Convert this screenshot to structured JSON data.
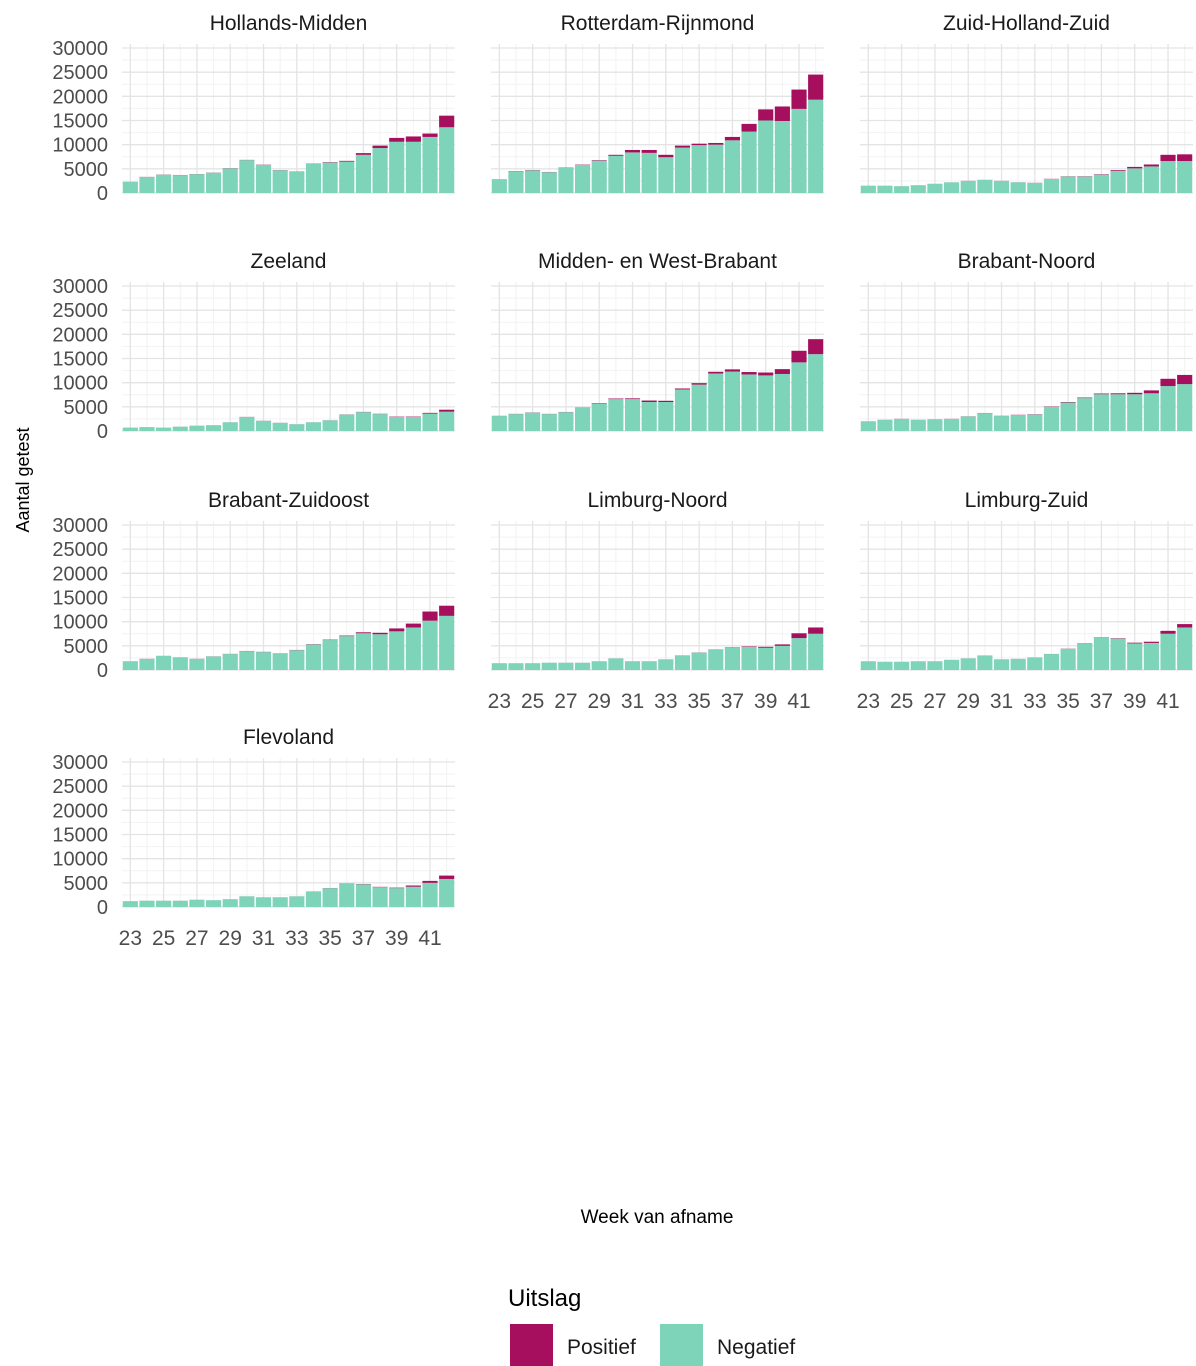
{
  "chart_data": {
    "type": "bar",
    "stacked": true,
    "xlabel": "Week van afname",
    "ylabel": "Aantal getest",
    "ylim": [
      0,
      30000
    ],
    "y_ticks": [
      0,
      5000,
      10000,
      15000,
      20000,
      25000,
      30000
    ],
    "x_weeks": [
      23,
      24,
      25,
      26,
      27,
      28,
      29,
      30,
      31,
      32,
      33,
      34,
      35,
      36,
      37,
      38,
      39,
      40,
      41,
      42
    ],
    "x_tick_labels": [
      "23",
      "25",
      "27",
      "29",
      "31",
      "33",
      "35",
      "37",
      "39",
      "41"
    ],
    "grid": true,
    "legend": {
      "title": "Uitslag",
      "position": "bottom",
      "items": [
        {
          "label": "Positief",
          "color": "#A50F5E"
        },
        {
          "label": "Negatief",
          "color": "#7DD4B8"
        }
      ]
    },
    "colors": {
      "positief": "#A50F5E",
      "negatief": "#7DD4B8"
    },
    "panels": [
      {
        "title": "Hollands-Midden",
        "negatief": [
          2300,
          3300,
          3800,
          3700,
          3900,
          4200,
          5100,
          6800,
          5800,
          4700,
          4400,
          6000,
          6300,
          6500,
          7900,
          9300,
          10600,
          10600,
          11600,
          13600
        ],
        "positief": [
          20,
          30,
          30,
          30,
          30,
          30,
          40,
          50,
          50,
          40,
          50,
          60,
          80,
          150,
          350,
          500,
          800,
          1100,
          700,
          2400
        ]
      },
      {
        "title": "Rotterdam-Rijnmond",
        "negatief": [
          2800,
          4500,
          4700,
          4300,
          5200,
          5800,
          6700,
          7700,
          8400,
          8300,
          7400,
          9400,
          9900,
          10000,
          10900,
          12700,
          15000,
          14900,
          17400,
          19300
        ],
        "positief": [
          30,
          50,
          60,
          50,
          60,
          70,
          100,
          200,
          500,
          600,
          500,
          400,
          300,
          350,
          700,
          1600,
          2300,
          3000,
          4000,
          5200
        ]
      },
      {
        "title": "Zuid-Holland-Zuid",
        "negatief": [
          1500,
          1500,
          1400,
          1600,
          1900,
          2200,
          2500,
          2700,
          2500,
          2200,
          2100,
          2900,
          3400,
          3400,
          3800,
          4600,
          5100,
          5500,
          6600,
          6600
        ],
        "positief": [
          10,
          10,
          10,
          10,
          10,
          10,
          20,
          20,
          20,
          20,
          20,
          30,
          50,
          60,
          80,
          150,
          300,
          400,
          1300,
          1400
        ]
      },
      {
        "title": "Zeeland",
        "negatief": [
          700,
          800,
          700,
          900,
          1100,
          1200,
          1800,
          2900,
          2100,
          1700,
          1400,
          1800,
          2200,
          3400,
          3900,
          3500,
          2900,
          2900,
          3600,
          4000
        ],
        "positief": [
          5,
          5,
          5,
          5,
          5,
          5,
          10,
          20,
          20,
          10,
          10,
          10,
          20,
          30,
          50,
          60,
          70,
          80,
          150,
          400
        ]
      },
      {
        "title": "Midden- en West-Brabant",
        "negatief": [
          3100,
          3500,
          3800,
          3500,
          3900,
          4800,
          5700,
          6600,
          6600,
          6000,
          6000,
          8600,
          9600,
          11900,
          12300,
          11700,
          11500,
          11800,
          14200,
          15900
        ],
        "positief": [
          30,
          40,
          40,
          40,
          40,
          50,
          80,
          120,
          150,
          300,
          250,
          200,
          300,
          350,
          450,
          500,
          600,
          1000,
          2400,
          3100
        ]
      },
      {
        "title": "Brabant-Noord",
        "negatief": [
          2000,
          2300,
          2500,
          2300,
          2400,
          2500,
          3000,
          3700,
          3100,
          3300,
          3400,
          5000,
          5900,
          6800,
          7600,
          7600,
          7600,
          7800,
          9300,
          9700
        ],
        "positief": [
          10,
          20,
          20,
          20,
          20,
          20,
          30,
          30,
          40,
          50,
          60,
          70,
          100,
          120,
          150,
          200,
          300,
          600,
          1500,
          1900
        ]
      },
      {
        "title": "Brabant-Zuidoost",
        "negatief": [
          1800,
          2300,
          2900,
          2600,
          2300,
          2800,
          3300,
          3900,
          3700,
          3400,
          4100,
          5300,
          6200,
          7000,
          7600,
          7400,
          8000,
          8800,
          10200,
          11200
        ],
        "positief": [
          10,
          20,
          20,
          20,
          20,
          20,
          30,
          40,
          50,
          40,
          50,
          60,
          80,
          120,
          200,
          300,
          600,
          800,
          1900,
          2100
        ]
      },
      {
        "title": "Limburg-Noord",
        "negatief": [
          1400,
          1400,
          1400,
          1500,
          1500,
          1500,
          1800,
          2400,
          1800,
          1800,
          2200,
          3000,
          3600,
          4200,
          4600,
          4800,
          4600,
          5000,
          6600,
          7500
        ],
        "positief": [
          5,
          5,
          5,
          5,
          5,
          5,
          10,
          10,
          10,
          10,
          10,
          20,
          30,
          50,
          80,
          100,
          200,
          300,
          1000,
          1300
        ]
      },
      {
        "title": "Limburg-Zuid",
        "negatief": [
          1800,
          1700,
          1700,
          1800,
          1800,
          2100,
          2400,
          3000,
          2200,
          2300,
          2600,
          3300,
          4400,
          5500,
          6700,
          6500,
          5500,
          5600,
          7500,
          8800
        ],
        "positief": [
          5,
          5,
          5,
          5,
          5,
          5,
          10,
          10,
          10,
          10,
          10,
          20,
          30,
          40,
          60,
          80,
          150,
          250,
          600,
          700
        ]
      },
      {
        "title": "Flevoland",
        "negatief": [
          1200,
          1300,
          1300,
          1300,
          1500,
          1400,
          1600,
          2200,
          2000,
          2000,
          2200,
          3200,
          3900,
          4800,
          4700,
          4100,
          3900,
          4200,
          5000,
          5800
        ],
        "positief": [
          5,
          5,
          5,
          5,
          5,
          5,
          10,
          10,
          10,
          10,
          10,
          20,
          30,
          50,
          60,
          70,
          100,
          250,
          400,
          700
        ]
      }
    ]
  }
}
